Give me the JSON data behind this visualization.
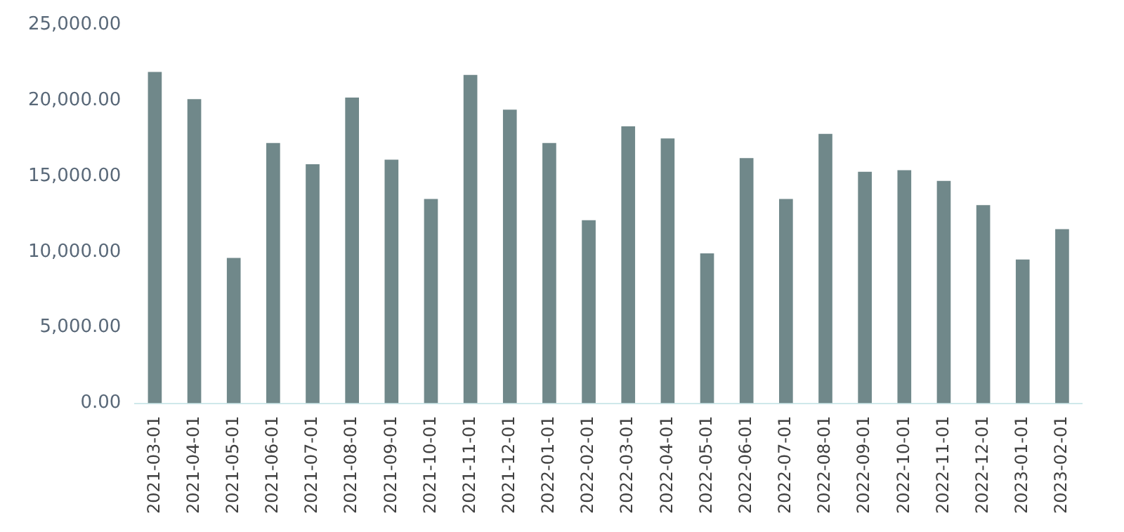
{
  "chart_data": {
    "type": "bar",
    "categories": [
      "2021-03-01",
      "2021-04-01",
      "2021-05-01",
      "2021-06-01",
      "2021-07-01",
      "2021-08-01",
      "2021-09-01",
      "2021-10-01",
      "2021-11-01",
      "2021-12-01",
      "2022-01-01",
      "2022-02-01",
      "2022-03-01",
      "2022-04-01",
      "2022-05-01",
      "2022-06-01",
      "2022-07-01",
      "2022-08-01",
      "2022-09-01",
      "2022-10-01",
      "2022-11-01",
      "2022-12-01",
      "2023-01-01",
      "2023-02-01"
    ],
    "values": [
      21900,
      20100,
      9600,
      17200,
      15800,
      20200,
      16100,
      13500,
      21700,
      19400,
      17200,
      12100,
      18300,
      17500,
      9900,
      16200,
      13500,
      17800,
      15300,
      15400,
      14700,
      13100,
      9500,
      11500
    ],
    "color": "#70888a",
    "ylim": [
      0,
      25000
    ],
    "yticks": [
      {
        "value": 0,
        "label": "0.00"
      },
      {
        "value": 5000,
        "label": "5,000.00"
      },
      {
        "value": 10000,
        "label": "10,000.00"
      },
      {
        "value": 15000,
        "label": "15,000.00"
      },
      {
        "value": 20000,
        "label": "20,000.00"
      },
      {
        "value": 25000,
        "label": "25,000.00"
      }
    ],
    "grid": false,
    "legend": false
  }
}
